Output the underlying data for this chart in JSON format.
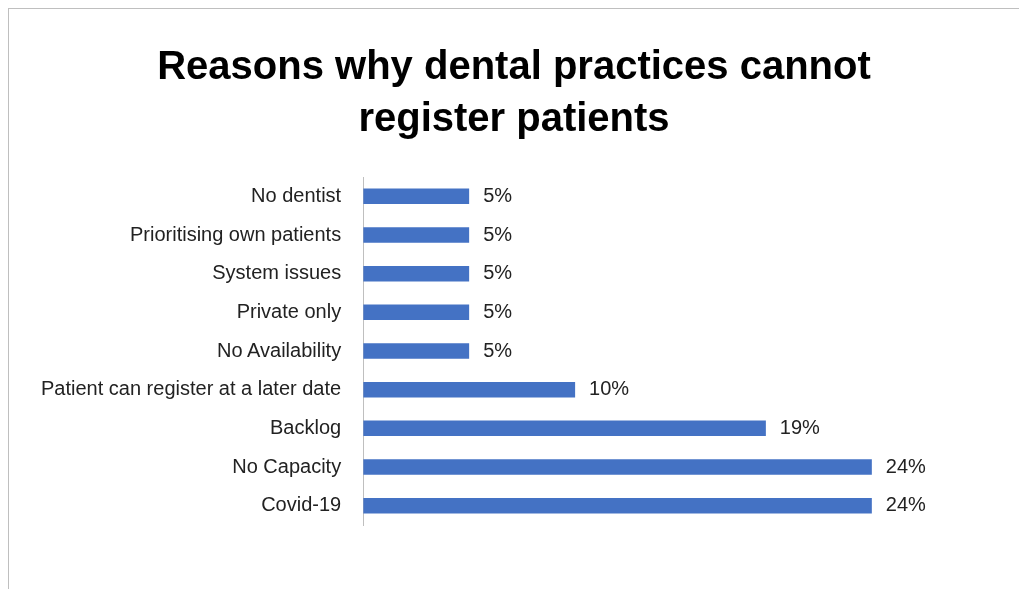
{
  "chart_data": {
    "type": "bar",
    "orientation": "horizontal",
    "title": "Reasons why dental practices cannot register patients",
    "categories": [
      "No dentist",
      "Prioritising own patients",
      "System issues",
      "Private only",
      "No Availability",
      "Patient can register at a later date",
      "Backlog",
      "No Capacity",
      "Covid-19"
    ],
    "values": [
      5,
      5,
      5,
      5,
      5,
      10,
      19,
      24,
      24
    ],
    "value_labels": [
      "5%",
      "5%",
      "5%",
      "5%",
      "5%",
      "10%",
      "19%",
      "24%",
      "24%"
    ],
    "color": "#4472c4",
    "legend": false
  }
}
